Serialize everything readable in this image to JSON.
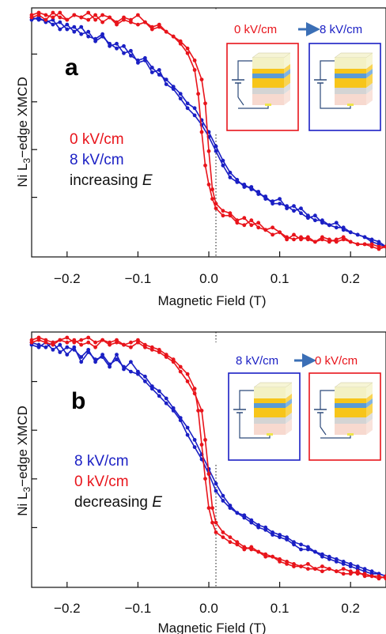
{
  "colors": {
    "red": "#e8141b",
    "blue": "#1a1fc4",
    "black": "#111111"
  },
  "figure": {
    "ylabel_prefix": "Ni L",
    "ylabel_sub": "3",
    "ylabel_suffix": "−edge XMCD"
  },
  "chart_data": [
    {
      "type": "line",
      "panel": "a",
      "xlabel": "Magnetic Field (T)",
      "ylabel": "Ni L3−edge XMCD",
      "xlim": [
        -0.25,
        0.25
      ],
      "ylim": [
        0,
        1
      ],
      "xticks": [
        "−0.2",
        "−0.1",
        "0.0",
        "0.1",
        "0.2"
      ],
      "legend": [
        {
          "text": "0 kV/cm",
          "color": "red"
        },
        {
          "text": "8 kV/cm",
          "color": "blue"
        },
        {
          "text_prefix": "increasing ",
          "text_italic": "E",
          "color": "black"
        }
      ],
      "inset_title": {
        "left": "0 kV/cm",
        "right": "8 kV/cm",
        "left_color": "red",
        "right_color": "blue"
      },
      "inset_boxes": [
        {
          "border": "red",
          "switch": "open"
        },
        {
          "border": "blue",
          "switch": "closed"
        }
      ],
      "series": [
        {
          "name": "0 kV/cm",
          "color": "red",
          "x": [
            -0.25,
            -0.24,
            -0.23,
            -0.22,
            -0.21,
            -0.2,
            -0.19,
            -0.18,
            -0.17,
            -0.16,
            -0.15,
            -0.14,
            -0.13,
            -0.12,
            -0.11,
            -0.1,
            -0.09,
            -0.08,
            -0.07,
            -0.06,
            -0.05,
            -0.04,
            -0.03,
            -0.02,
            -0.01,
            -0.005,
            0.0,
            0.005,
            0.01,
            0.02,
            0.03,
            0.04,
            0.05,
            0.06,
            0.07,
            0.08,
            0.09,
            0.1,
            0.11,
            0.12,
            0.13,
            0.14,
            0.15,
            0.16,
            0.17,
            0.18,
            0.19,
            0.2,
            0.21,
            0.22,
            0.23,
            0.24,
            0.25
          ],
          "y": [
            0.99,
            1.0,
            0.99,
            0.98,
            1.0,
            0.97,
            0.99,
            0.98,
            1.0,
            0.97,
            0.99,
            0.98,
            0.96,
            0.98,
            0.97,
            0.99,
            0.96,
            0.94,
            0.95,
            0.92,
            0.9,
            0.88,
            0.85,
            0.8,
            0.72,
            0.62,
            0.42,
            0.26,
            0.2,
            0.17,
            0.16,
            0.13,
            0.14,
            0.11,
            0.12,
            0.09,
            0.1,
            0.08,
            0.06,
            0.05,
            0.06,
            0.05,
            0.04,
            0.05,
            0.04,
            0.05,
            0.06,
            0.04,
            0.03,
            0.03,
            0.03,
            0.02,
            0.02
          ]
        },
        {
          "name": "0 kV/cm",
          "color": "red",
          "x": [
            -0.25,
            -0.24,
            -0.23,
            -0.22,
            -0.21,
            -0.2,
            -0.19,
            -0.18,
            -0.17,
            -0.16,
            -0.15,
            -0.14,
            -0.13,
            -0.12,
            -0.11,
            -0.1,
            -0.09,
            -0.08,
            -0.07,
            -0.06,
            -0.05,
            -0.04,
            -0.03,
            -0.02,
            -0.015,
            -0.01,
            -0.005,
            0.0,
            0.005,
            0.01,
            0.02,
            0.03,
            0.04,
            0.05,
            0.06,
            0.07,
            0.08,
            0.09,
            0.1,
            0.11,
            0.12,
            0.13,
            0.14,
            0.15,
            0.16,
            0.17,
            0.18,
            0.19,
            0.2,
            0.21,
            0.22,
            0.23,
            0.24,
            0.25
          ],
          "y": [
            0.98,
            0.99,
            0.97,
            1.0,
            0.98,
            0.97,
            0.99,
            0.98,
            0.97,
            0.99,
            0.96,
            0.98,
            0.95,
            0.97,
            0.96,
            0.95,
            0.96,
            0.93,
            0.94,
            0.92,
            0.9,
            0.87,
            0.83,
            0.76,
            0.66,
            0.5,
            0.36,
            0.28,
            0.22,
            0.18,
            0.15,
            0.15,
            0.12,
            0.11,
            0.13,
            0.1,
            0.09,
            0.07,
            0.08,
            0.05,
            0.07,
            0.05,
            0.06,
            0.04,
            0.06,
            0.05,
            0.04,
            0.05,
            0.04,
            0.03,
            0.03,
            0.02,
            0.01,
            0.02
          ]
        },
        {
          "name": "8 kV/cm",
          "color": "blue",
          "x": [
            -0.25,
            -0.24,
            -0.23,
            -0.22,
            -0.21,
            -0.2,
            -0.19,
            -0.18,
            -0.17,
            -0.16,
            -0.15,
            -0.14,
            -0.13,
            -0.12,
            -0.11,
            -0.1,
            -0.09,
            -0.08,
            -0.07,
            -0.06,
            -0.05,
            -0.04,
            -0.03,
            -0.02,
            -0.01,
            0.0,
            0.01,
            0.02,
            0.03,
            0.04,
            0.05,
            0.06,
            0.07,
            0.08,
            0.09,
            0.1,
            0.11,
            0.12,
            0.13,
            0.14,
            0.15,
            0.16,
            0.17,
            0.18,
            0.19,
            0.2,
            0.21,
            0.22,
            0.23,
            0.24,
            0.25
          ],
          "y": [
            0.97,
            0.98,
            0.96,
            0.97,
            0.93,
            0.95,
            0.92,
            0.94,
            0.9,
            0.89,
            0.91,
            0.86,
            0.87,
            0.83,
            0.84,
            0.79,
            0.8,
            0.75,
            0.76,
            0.7,
            0.68,
            0.64,
            0.6,
            0.57,
            0.53,
            0.48,
            0.42,
            0.36,
            0.31,
            0.29,
            0.28,
            0.26,
            0.25,
            0.22,
            0.21,
            0.22,
            0.18,
            0.19,
            0.16,
            0.14,
            0.15,
            0.12,
            0.11,
            0.12,
            0.09,
            0.08,
            0.07,
            0.06,
            0.05,
            0.04,
            0.02
          ]
        },
        {
          "name": "8 kV/cm",
          "color": "blue",
          "x": [
            -0.25,
            -0.24,
            -0.23,
            -0.22,
            -0.21,
            -0.2,
            -0.19,
            -0.18,
            -0.17,
            -0.16,
            -0.15,
            -0.14,
            -0.13,
            -0.12,
            -0.11,
            -0.1,
            -0.09,
            -0.08,
            -0.07,
            -0.06,
            -0.05,
            -0.04,
            -0.03,
            -0.02,
            -0.01,
            0.0,
            0.01,
            0.02,
            0.03,
            0.04,
            0.05,
            0.06,
            0.07,
            0.08,
            0.09,
            0.1,
            0.11,
            0.12,
            0.13,
            0.14,
            0.15,
            0.16,
            0.17,
            0.18,
            0.19,
            0.2,
            0.21,
            0.22,
            0.23,
            0.24,
            0.25
          ],
          "y": [
            0.98,
            0.97,
            0.97,
            0.95,
            0.96,
            0.93,
            0.94,
            0.91,
            0.92,
            0.88,
            0.9,
            0.87,
            0.85,
            0.86,
            0.82,
            0.8,
            0.81,
            0.77,
            0.74,
            0.72,
            0.69,
            0.66,
            0.62,
            0.6,
            0.55,
            0.5,
            0.44,
            0.38,
            0.33,
            0.3,
            0.27,
            0.27,
            0.24,
            0.23,
            0.2,
            0.2,
            0.19,
            0.17,
            0.18,
            0.15,
            0.13,
            0.13,
            0.11,
            0.1,
            0.1,
            0.08,
            0.07,
            0.06,
            0.04,
            0.03,
            0.02
          ]
        }
      ]
    },
    {
      "type": "line",
      "panel": "b",
      "xlabel": "Magnetic Field (T)",
      "ylabel": "Ni L3−edge XMCD",
      "xlim": [
        -0.25,
        0.25
      ],
      "ylim": [
        0,
        1
      ],
      "xticks": [
        "−0.2",
        "−0.1",
        "0.0",
        "0.1",
        "0.2"
      ],
      "legend": [
        {
          "text": "8 kV/cm",
          "color": "blue"
        },
        {
          "text": "0 kV/cm",
          "color": "red"
        },
        {
          "text_prefix": "decreasing ",
          "text_italic": "E",
          "color": "black"
        }
      ],
      "inset_title": {
        "left": "8 kV/cm",
        "right": "0 kV/cm",
        "left_color": "blue",
        "right_color": "red"
      },
      "inset_boxes": [
        {
          "border": "blue",
          "switch": "closed"
        },
        {
          "border": "red",
          "switch": "open"
        }
      ],
      "series": [
        {
          "name": "0 kV/cm",
          "color": "red",
          "x": [
            -0.25,
            -0.24,
            -0.23,
            -0.22,
            -0.21,
            -0.2,
            -0.19,
            -0.18,
            -0.17,
            -0.16,
            -0.15,
            -0.14,
            -0.13,
            -0.12,
            -0.11,
            -0.1,
            -0.09,
            -0.08,
            -0.07,
            -0.06,
            -0.05,
            -0.04,
            -0.03,
            -0.02,
            -0.015,
            -0.01,
            -0.005,
            0.0,
            0.005,
            0.01,
            0.02,
            0.03,
            0.04,
            0.05,
            0.06,
            0.07,
            0.08,
            0.09,
            0.1,
            0.11,
            0.12,
            0.13,
            0.14,
            0.15,
            0.16,
            0.17,
            0.18,
            0.19,
            0.2,
            0.21,
            0.22,
            0.23,
            0.24,
            0.25
          ],
          "y": [
            0.99,
            1.0,
            0.99,
            0.98,
            0.99,
            1.0,
            0.98,
            0.99,
            1.0,
            0.98,
            0.99,
            0.98,
            0.99,
            0.97,
            0.98,
            0.99,
            0.97,
            0.96,
            0.95,
            0.93,
            0.91,
            0.88,
            0.85,
            0.79,
            0.7,
            0.56,
            0.42,
            0.3,
            0.24,
            0.2,
            0.18,
            0.16,
            0.15,
            0.13,
            0.14,
            0.12,
            0.11,
            0.1,
            0.09,
            0.08,
            0.07,
            0.06,
            0.07,
            0.05,
            0.06,
            0.05,
            0.04,
            0.05,
            0.04,
            0.03,
            0.03,
            0.02,
            0.02,
            0.01
          ]
        },
        {
          "name": "0 kV/cm",
          "color": "red",
          "x": [
            -0.25,
            -0.24,
            -0.23,
            -0.22,
            -0.21,
            -0.2,
            -0.19,
            -0.18,
            -0.17,
            -0.16,
            -0.15,
            -0.14,
            -0.13,
            -0.12,
            -0.11,
            -0.1,
            -0.09,
            -0.08,
            -0.07,
            -0.06,
            -0.05,
            -0.04,
            -0.03,
            -0.02,
            -0.01,
            -0.005,
            0.0,
            0.005,
            0.01,
            0.02,
            0.03,
            0.04,
            0.05,
            0.06,
            0.07,
            0.08,
            0.09,
            0.1,
            0.11,
            0.12,
            0.13,
            0.14,
            0.15,
            0.16,
            0.17,
            0.18,
            0.19,
            0.2,
            0.21,
            0.22,
            0.23,
            0.24,
            0.25
          ],
          "y": [
            0.98,
            0.99,
            0.98,
            0.97,
            0.99,
            0.98,
            0.99,
            0.97,
            0.98,
            0.96,
            0.99,
            0.97,
            0.98,
            0.97,
            0.96,
            0.98,
            0.96,
            0.95,
            0.94,
            0.92,
            0.9,
            0.86,
            0.82,
            0.77,
            0.7,
            0.58,
            0.44,
            0.3,
            0.24,
            0.2,
            0.18,
            0.16,
            0.14,
            0.13,
            0.12,
            0.1,
            0.1,
            0.08,
            0.07,
            0.06,
            0.06,
            0.05,
            0.05,
            0.04,
            0.05,
            0.04,
            0.03,
            0.03,
            0.04,
            0.02,
            0.02,
            0.01,
            0.02
          ]
        },
        {
          "name": "8 kV/cm",
          "color": "blue",
          "x": [
            -0.25,
            -0.24,
            -0.23,
            -0.22,
            -0.21,
            -0.2,
            -0.19,
            -0.18,
            -0.17,
            -0.16,
            -0.15,
            -0.14,
            -0.13,
            -0.12,
            -0.11,
            -0.1,
            -0.09,
            -0.08,
            -0.07,
            -0.06,
            -0.05,
            -0.04,
            -0.03,
            -0.02,
            -0.01,
            0.0,
            0.01,
            0.02,
            0.03,
            0.04,
            0.05,
            0.06,
            0.07,
            0.08,
            0.09,
            0.1,
            0.11,
            0.12,
            0.13,
            0.14,
            0.15,
            0.16,
            0.17,
            0.18,
            0.19,
            0.2,
            0.21,
            0.22,
            0.23,
            0.24,
            0.25
          ],
          "y": [
            0.97,
            0.96,
            0.98,
            0.95,
            0.97,
            0.93,
            0.96,
            0.9,
            0.94,
            0.91,
            0.92,
            0.88,
            0.93,
            0.87,
            0.9,
            0.86,
            0.84,
            0.8,
            0.78,
            0.75,
            0.71,
            0.67,
            0.63,
            0.58,
            0.52,
            0.46,
            0.4,
            0.35,
            0.31,
            0.28,
            0.27,
            0.25,
            0.23,
            0.22,
            0.2,
            0.19,
            0.18,
            0.16,
            0.15,
            0.14,
            0.12,
            0.11,
            0.1,
            0.09,
            0.08,
            0.07,
            0.06,
            0.05,
            0.04,
            0.03,
            0.02
          ]
        },
        {
          "name": "8 kV/cm",
          "color": "blue",
          "x": [
            -0.25,
            -0.24,
            -0.23,
            -0.22,
            -0.21,
            -0.2,
            -0.19,
            -0.18,
            -0.17,
            -0.16,
            -0.15,
            -0.14,
            -0.13,
            -0.12,
            -0.11,
            -0.1,
            -0.09,
            -0.08,
            -0.07,
            -0.06,
            -0.05,
            -0.04,
            -0.03,
            -0.02,
            -0.01,
            0.0,
            0.01,
            0.02,
            0.03,
            0.04,
            0.05,
            0.06,
            0.07,
            0.08,
            0.09,
            0.1,
            0.11,
            0.12,
            0.13,
            0.14,
            0.15,
            0.16,
            0.17,
            0.18,
            0.19,
            0.2,
            0.21,
            0.22,
            0.23,
            0.24,
            0.25
          ],
          "y": [
            0.98,
            0.97,
            0.96,
            0.98,
            0.94,
            0.96,
            0.95,
            0.92,
            0.95,
            0.9,
            0.93,
            0.89,
            0.91,
            0.88,
            0.86,
            0.85,
            0.82,
            0.79,
            0.76,
            0.73,
            0.7,
            0.66,
            0.6,
            0.55,
            0.5,
            0.44,
            0.37,
            0.33,
            0.3,
            0.28,
            0.26,
            0.24,
            0.22,
            0.21,
            0.19,
            0.18,
            0.17,
            0.15,
            0.13,
            0.13,
            0.12,
            0.1,
            0.09,
            0.08,
            0.07,
            0.06,
            0.05,
            0.04,
            0.03,
            0.03,
            0.02
          ]
        }
      ]
    }
  ]
}
